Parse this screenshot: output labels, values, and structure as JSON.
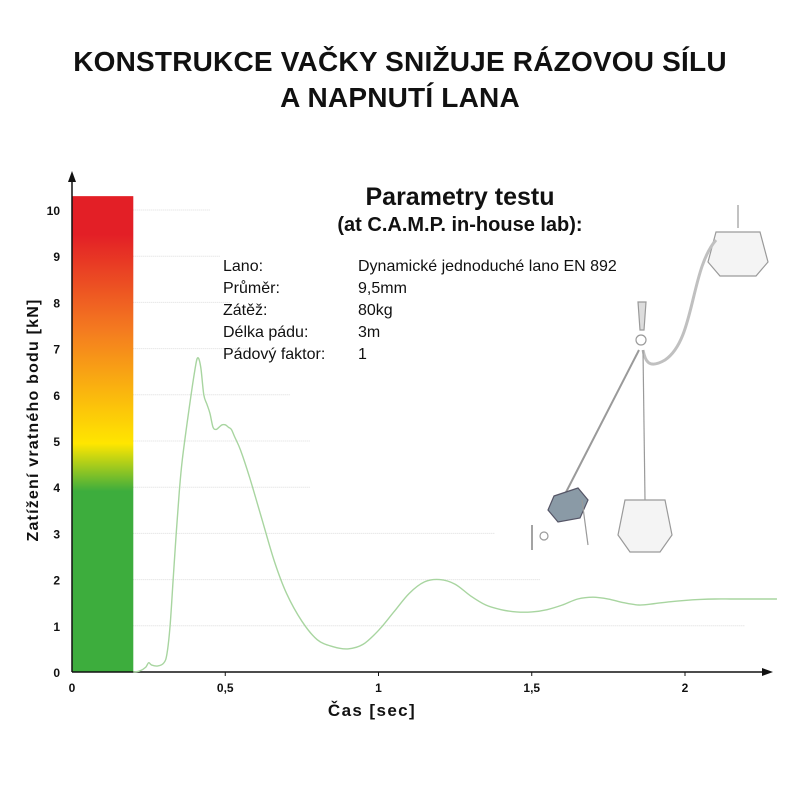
{
  "title": {
    "line1": "KONSTRUKCE VAČKY SNIŽUJE RÁZOVOU SÍLU",
    "line2": "A NAPNUTÍ LANA"
  },
  "params": {
    "title": "Parametry testu",
    "subtitle": "(at C.A.M.P. in-house lab):",
    "rows": [
      {
        "key": "Lano:",
        "value": "Dynamické jednoduché lano EN 892"
      },
      {
        "key": "Průměr:",
        "value": "9,5mm"
      },
      {
        "key": "Zátěž:",
        "value": "80kg"
      },
      {
        "key": "Délka pádu:",
        "value": "3m"
      },
      {
        "key": "Pádový faktor:",
        "value": "1"
      }
    ]
  },
  "colors": {
    "curve": "#a8d5a0",
    "bar_top": "#e31f26",
    "bar_mid": "#ffe600",
    "bar_bottom": "#3dad3d",
    "axis": "#111111",
    "grid": "#dddddd"
  },
  "chart_data": {
    "type": "line",
    "xlabel": "Čas [sec]",
    "ylabel": "Zatížení vratného bodu [kN]",
    "xlim": [
      0,
      2.3
    ],
    "ylim": [
      0,
      10.3
    ],
    "x_ticks": [
      {
        "value": 0,
        "label": "0"
      },
      {
        "value": 0.5,
        "label": "0,5"
      },
      {
        "value": 1,
        "label": "1"
      },
      {
        "value": 1.5,
        "label": "1,5"
      },
      {
        "value": 2,
        "label": "2"
      }
    ],
    "y_ticks": [
      0,
      1,
      2,
      3,
      4,
      5,
      6,
      7,
      8,
      9,
      10
    ],
    "color_scale_bar": {
      "x_range": [
        0,
        0.2
      ],
      "y_range": [
        0,
        10.3
      ]
    },
    "series": [
      {
        "x": [
          0.2,
          0.22,
          0.24,
          0.25,
          0.26,
          0.28,
          0.3,
          0.31,
          0.32,
          0.33,
          0.34,
          0.35,
          0.36,
          0.38,
          0.4,
          0.41,
          0.42,
          0.43,
          0.44,
          0.45,
          0.46,
          0.47,
          0.48,
          0.49,
          0.5,
          0.51,
          0.52,
          0.53,
          0.55,
          0.58,
          0.62,
          0.66,
          0.7,
          0.75,
          0.8,
          0.85,
          0.9,
          0.95,
          1.0,
          1.05,
          1.1,
          1.15,
          1.2,
          1.25,
          1.3,
          1.35,
          1.4,
          1.45,
          1.5,
          1.55,
          1.6,
          1.65,
          1.7,
          1.75,
          1.8,
          1.85,
          1.9,
          1.95,
          2.0,
          2.05,
          2.1,
          2.15,
          2.2,
          2.25,
          2.3
        ],
        "y": [
          0.0,
          0.02,
          0.1,
          0.2,
          0.15,
          0.13,
          0.2,
          0.4,
          1.0,
          2.0,
          3.0,
          3.9,
          4.6,
          5.6,
          6.5,
          6.8,
          6.6,
          6.0,
          5.8,
          5.6,
          5.3,
          5.25,
          5.3,
          5.35,
          5.35,
          5.3,
          5.25,
          5.1,
          4.8,
          4.2,
          3.3,
          2.4,
          1.7,
          1.1,
          0.7,
          0.55,
          0.5,
          0.6,
          0.9,
          1.3,
          1.7,
          1.95,
          2.0,
          1.9,
          1.65,
          1.45,
          1.35,
          1.3,
          1.3,
          1.35,
          1.45,
          1.58,
          1.62,
          1.58,
          1.5,
          1.45,
          1.48,
          1.52,
          1.55,
          1.57,
          1.58,
          1.58,
          1.58,
          1.58,
          1.58
        ]
      }
    ]
  }
}
